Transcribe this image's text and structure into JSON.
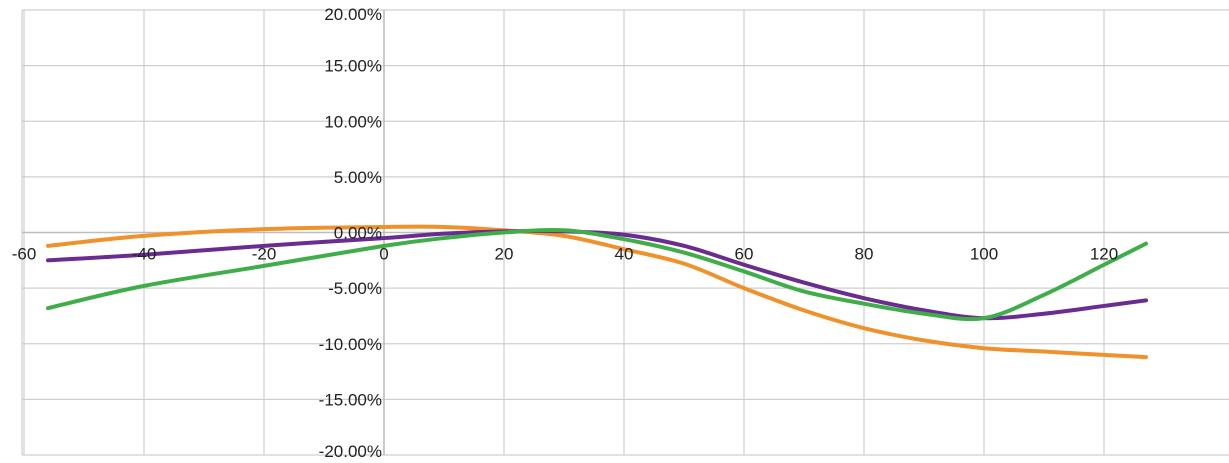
{
  "chart_data": {
    "type": "line",
    "title": "",
    "xlabel": "",
    "ylabel": "",
    "xlim": [
      -60,
      135
    ],
    "ylim": [
      -20,
      20
    ],
    "x_ticks": [
      -60,
      -40,
      -20,
      0,
      20,
      40,
      60,
      80,
      100,
      120
    ],
    "x_tick_labels": [
      "-60",
      "-40",
      "-20",
      "0",
      "20",
      "40",
      "60",
      "80",
      "100",
      "120"
    ],
    "y_ticks": [
      20,
      15,
      10,
      5,
      0,
      -5,
      -10,
      -15,
      -20
    ],
    "y_tick_labels": [
      "20.00%",
      "15.00%",
      "10.00%",
      "5.00%",
      "0.00%",
      "-5.00%",
      "-10.00%",
      "-15.00%",
      "-20.00%"
    ],
    "grid": true,
    "series": [
      {
        "color": "#f0922b",
        "points": [
          [
            -56,
            -1.2
          ],
          [
            -40,
            -0.3
          ],
          [
            -20,
            0.3
          ],
          [
            0,
            0.5
          ],
          [
            10,
            0.5
          ],
          [
            20,
            0.2
          ],
          [
            30,
            -0.3
          ],
          [
            40,
            -1.5
          ],
          [
            50,
            -2.8
          ],
          [
            60,
            -5.0
          ],
          [
            70,
            -7.0
          ],
          [
            80,
            -8.6
          ],
          [
            90,
            -9.7
          ],
          [
            100,
            -10.4
          ],
          [
            110,
            -10.7
          ],
          [
            120,
            -11.0
          ],
          [
            127,
            -11.2
          ]
        ]
      },
      {
        "color": "#6a2c91",
        "points": [
          [
            -56,
            -2.5
          ],
          [
            -40,
            -2.0
          ],
          [
            -20,
            -1.2
          ],
          [
            0,
            -0.5
          ],
          [
            10,
            -0.1
          ],
          [
            20,
            0.1
          ],
          [
            30,
            0.1
          ],
          [
            40,
            -0.2
          ],
          [
            50,
            -1.2
          ],
          [
            60,
            -2.9
          ],
          [
            70,
            -4.5
          ],
          [
            80,
            -5.9
          ],
          [
            90,
            -7.0
          ],
          [
            100,
            -7.7
          ],
          [
            110,
            -7.3
          ],
          [
            120,
            -6.6
          ],
          [
            127,
            -6.1
          ]
        ]
      },
      {
        "color": "#3fae49",
        "points": [
          [
            -56,
            -6.8
          ],
          [
            -40,
            -4.8
          ],
          [
            -20,
            -3.0
          ],
          [
            0,
            -1.2
          ],
          [
            10,
            -0.5
          ],
          [
            20,
            0.0
          ],
          [
            30,
            0.2
          ],
          [
            40,
            -0.6
          ],
          [
            50,
            -1.8
          ],
          [
            60,
            -3.5
          ],
          [
            70,
            -5.3
          ],
          [
            80,
            -6.4
          ],
          [
            90,
            -7.3
          ],
          [
            100,
            -7.7
          ],
          [
            110,
            -5.6
          ],
          [
            120,
            -2.9
          ],
          [
            127,
            -1.0
          ]
        ]
      }
    ]
  }
}
